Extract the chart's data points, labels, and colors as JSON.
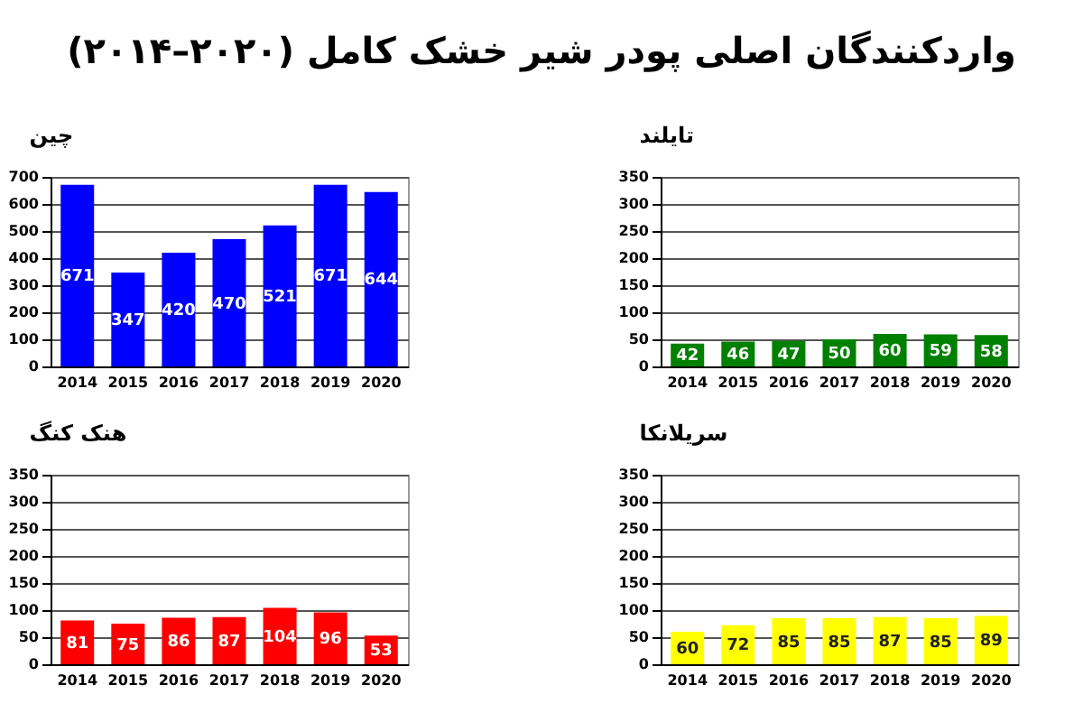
{
  "chart_data": [
    {
      "type": "other",
      "title": "واردکنندگان اصلی پودر شیر خشک کامل (۲۰۲۰–۲۰۱۴)"
    },
    {
      "type": "bar",
      "title": "چین",
      "categories": [
        "2014",
        "2015",
        "2016",
        "2017",
        "2018",
        "2019",
        "2020"
      ],
      "values": [
        671,
        347,
        420,
        470,
        521,
        671,
        644
      ],
      "color": "#0000ff",
      "ylim": [
        0,
        700
      ],
      "yticks": [
        0,
        100,
        200,
        300,
        400,
        500,
        600,
        700
      ],
      "grid": "y",
      "data_labels": true
    },
    {
      "type": "bar",
      "title": "تایلند",
      "categories": [
        "2014",
        "2015",
        "2016",
        "2017",
        "2018",
        "2019",
        "2020"
      ],
      "values": [
        42,
        46,
        47,
        50,
        60,
        59,
        58
      ],
      "color": "#008000",
      "ylim": [
        0,
        350
      ],
      "yticks": [
        0,
        50,
        100,
        150,
        200,
        250,
        300,
        350
      ],
      "grid": "y",
      "data_labels": true
    },
    {
      "type": "bar",
      "title": "هنک کنگ",
      "categories": [
        "2014",
        "2015",
        "2016",
        "2017",
        "2018",
        "2019",
        "2020"
      ],
      "values": [
        81,
        75,
        86,
        87,
        104,
        96,
        53
      ],
      "color": "#ff0000",
      "ylim": [
        0,
        350
      ],
      "yticks": [
        0,
        50,
        100,
        150,
        200,
        250,
        300,
        350
      ],
      "grid": "y",
      "data_labels": true
    },
    {
      "type": "bar",
      "title": "سریلانکا",
      "categories": [
        "2014",
        "2015",
        "2016",
        "2017",
        "2018",
        "2019",
        "2020"
      ],
      "values": [
        60,
        72,
        85,
        85,
        87,
        85,
        89
      ],
      "color": "#ffff00",
      "ylim": [
        0,
        350
      ],
      "yticks": [
        0,
        50,
        100,
        150,
        200,
        250,
        300,
        350
      ],
      "grid": "y",
      "data_labels": true
    }
  ]
}
